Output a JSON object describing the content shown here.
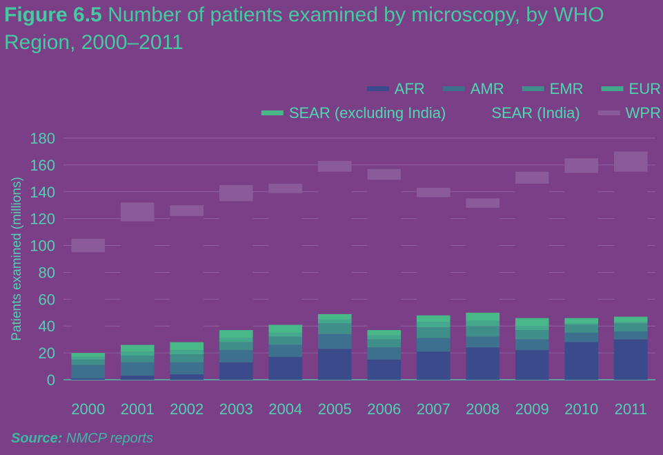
{
  "header": {
    "figure_label": "Figure 6.5",
    "title_text": "Number of patients examined by microscopy, by WHO Region, 2000–2011"
  },
  "source": {
    "label": "Source:",
    "text": "NMCP reports"
  },
  "colors": {
    "background": "#7a3f86",
    "title": "#46c9a0",
    "AFR": "#3b4a8a",
    "AMR": "#3d6f8e",
    "EMR": "#3f8e8a",
    "EUR": "#44a88c",
    "SEAR (excluding India)": "#49b889",
    "SEAR (India)": "#7a3f86",
    "WPR": "#8a5a9a"
  },
  "chart_data": {
    "type": "bar",
    "stacked": true,
    "title": "Figure 6.5 Number of patients examined by microscopy, by WHO Region, 2000–2011",
    "xlabel": "",
    "ylabel": "Patients examined (millions)",
    "ylim": [
      0,
      180
    ],
    "yticks": [
      0,
      20,
      40,
      60,
      80,
      100,
      120,
      140,
      160,
      180
    ],
    "grid": true,
    "legend_position": "top-right",
    "categories": [
      "2000",
      "2001",
      "2002",
      "2003",
      "2004",
      "2005",
      "2006",
      "2007",
      "2008",
      "2009",
      "2010",
      "2011"
    ],
    "series": [
      {
        "name": "AFR",
        "values": [
          1,
          3,
          4,
          13,
          17,
          23,
          15,
          21,
          24,
          22,
          28,
          30
        ]
      },
      {
        "name": "AMR",
        "values": [
          10,
          10,
          9,
          9,
          9,
          11,
          9,
          10,
          8,
          8,
          7,
          6
        ]
      },
      {
        "name": "EMR",
        "values": [
          4,
          5,
          6,
          6,
          6,
          8,
          6,
          8,
          8,
          7,
          6,
          6
        ]
      },
      {
        "name": "EUR",
        "values": [
          2,
          3,
          3,
          3,
          3,
          3,
          3,
          4,
          4,
          3,
          1,
          1
        ]
      },
      {
        "name": "SEAR (excluding India)",
        "values": [
          3,
          5,
          6,
          6,
          6,
          4,
          4,
          5,
          6,
          6,
          4,
          4
        ]
      },
      {
        "name": "SEAR (India)",
        "values": [
          75,
          92,
          94,
          96,
          98,
          106,
          112,
          88,
          78,
          100,
          108,
          108
        ]
      },
      {
        "name": "WPR",
        "values": [
          10,
          14,
          8,
          12,
          7,
          8,
          8,
          7,
          7,
          9,
          11,
          15
        ]
      }
    ]
  }
}
